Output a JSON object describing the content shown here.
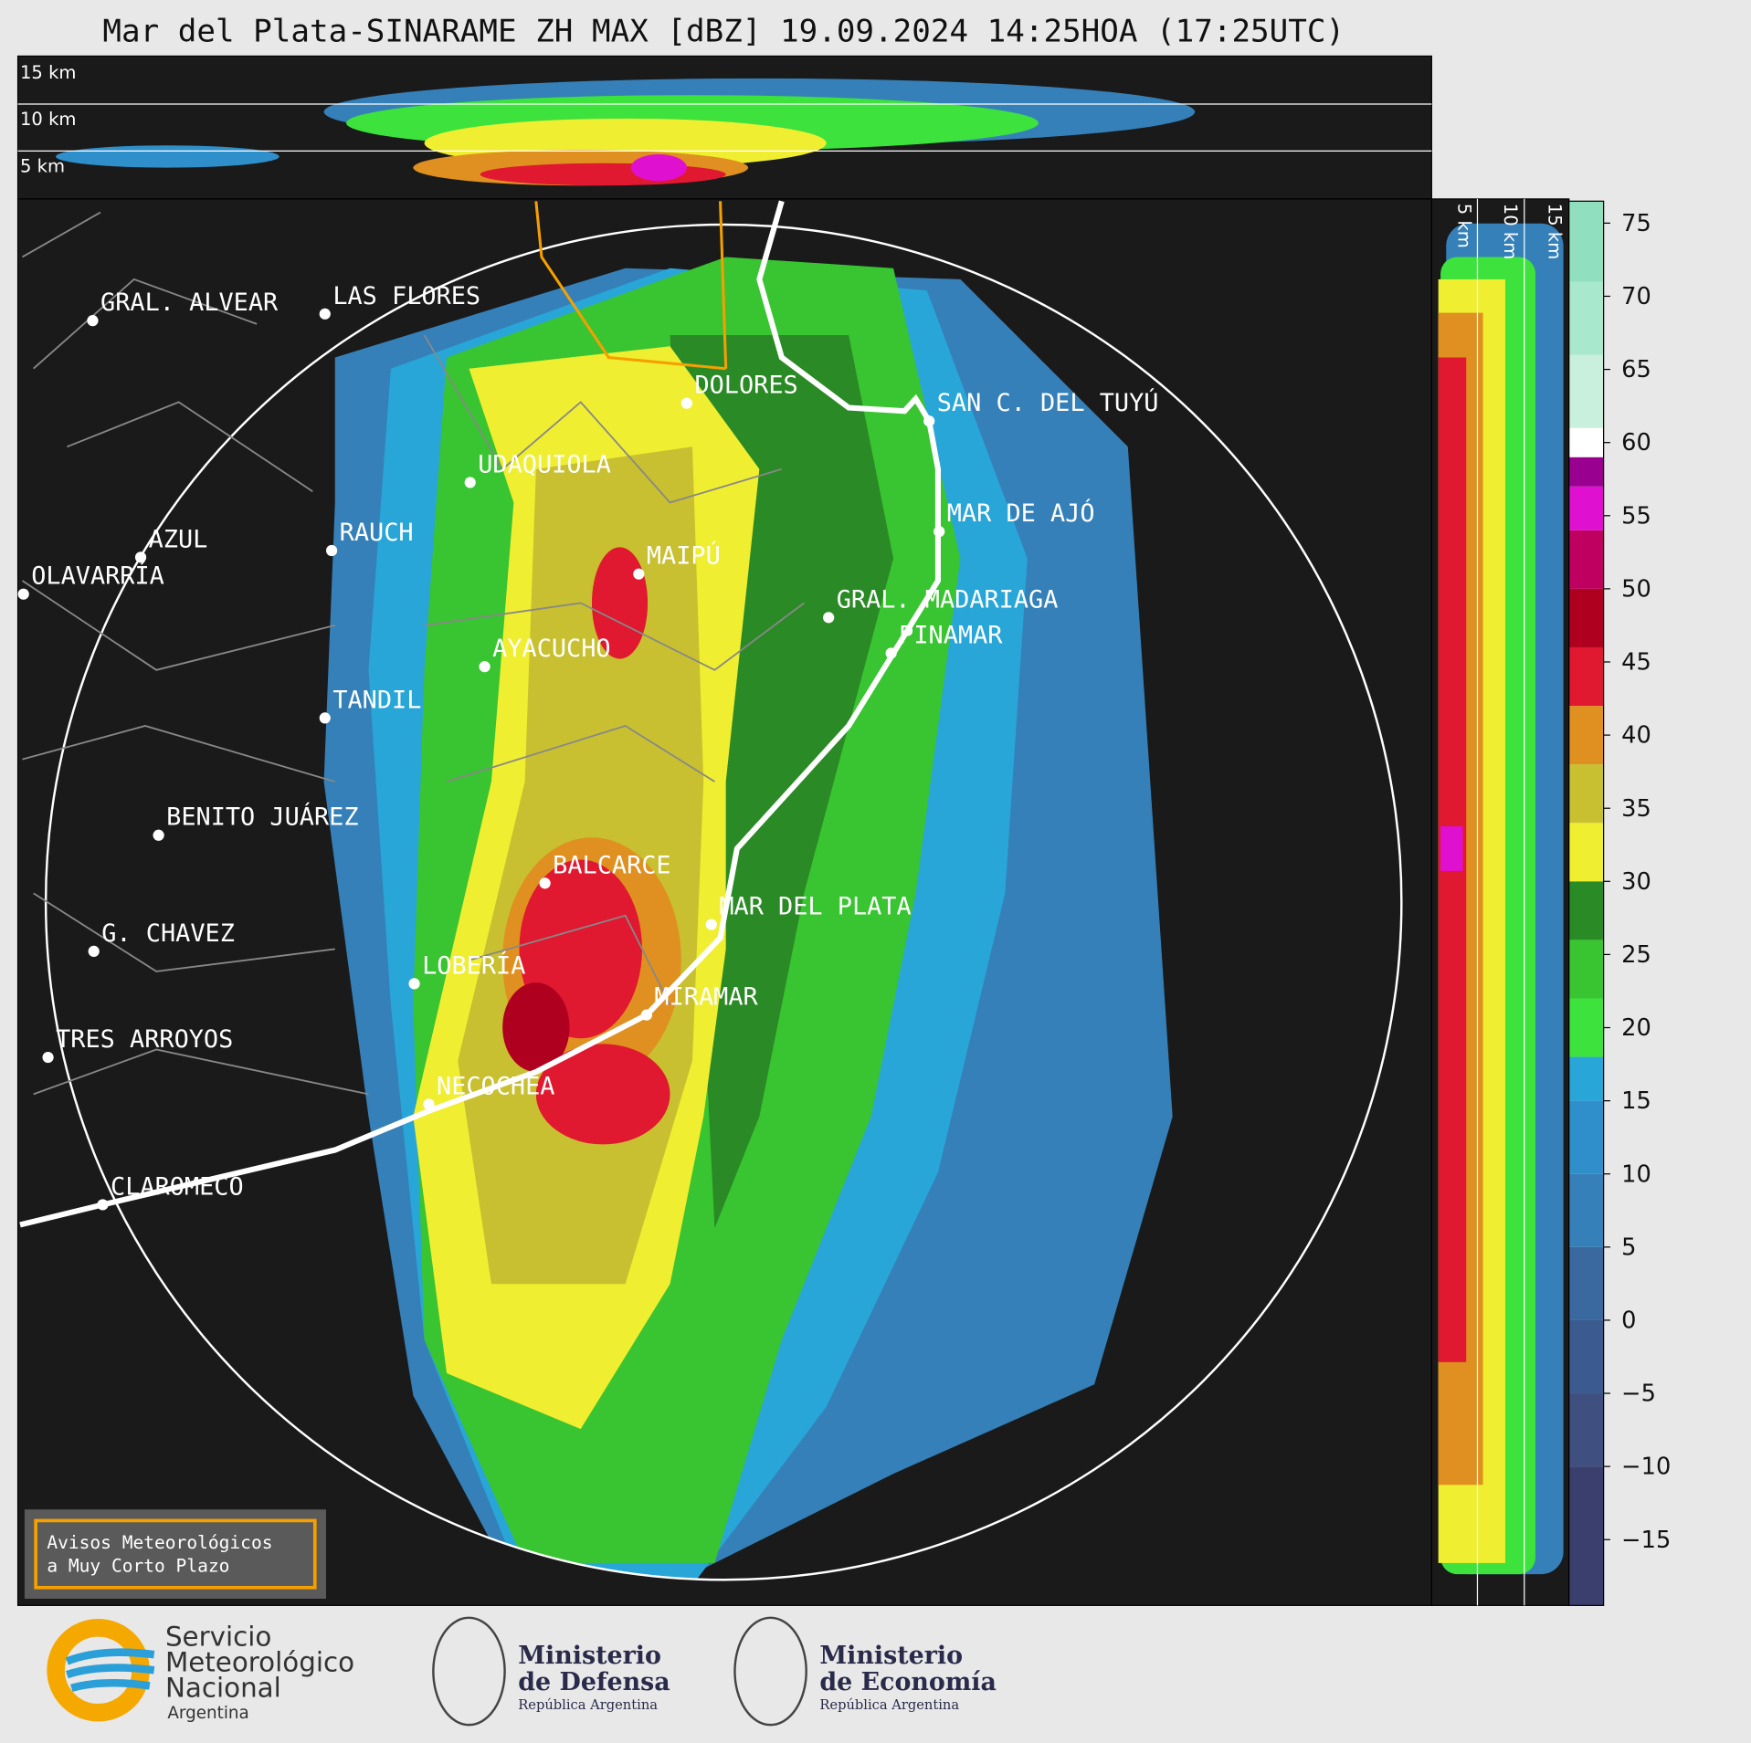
{
  "title": "Mar del Plata-SINARAME ZH MAX [dBZ] 19.09.2024 14:25HOA (17:25UTC)",
  "cross_section_top": {
    "height_labels": [
      "15 km",
      "10 km",
      "5 km"
    ]
  },
  "cross_section_side": {
    "height_labels": [
      "5 km",
      "10 km",
      "15 km"
    ]
  },
  "cities": [
    "GRAL. ALVEAR",
    "LAS FLORES",
    "DOLORES",
    "SAN C. DEL TUYÚ",
    "UDAQUIOLA",
    "MAR DE AJÓ",
    "AZUL",
    "RAUCH",
    "MAIPÚ",
    "OLAVARRÍA",
    "GRAL. MADARIAGA",
    "PINAMAR",
    "AYACUCHO",
    "TANDIL",
    "BENITO JUÁREZ",
    "BALCARCE",
    "MAR DEL PLATA",
    "G. CHAVEZ",
    "LOBERÍA",
    "MIRAMAR",
    "TRES ARROYOS",
    "NECOCHEA",
    "CLAROMECO"
  ],
  "colorbar": {
    "range": [
      -19.5,
      76.5
    ],
    "ticks": [
      75,
      70,
      65,
      60,
      55,
      50,
      45,
      40,
      35,
      30,
      25,
      20,
      15,
      10,
      5,
      0,
      {
        "value": -5,
        "label": "−5"
      },
      {
        "value": -10,
        "label": "−10"
      },
      {
        "value": -15,
        "label": "−15"
      }
    ],
    "bands": [
      {
        "from": -19.5,
        "to": -10,
        "color": "#3a3f6e"
      },
      {
        "from": -10,
        "to": -5,
        "color": "#3f4f80"
      },
      {
        "from": -5,
        "to": 0,
        "color": "#3b5b8f"
      },
      {
        "from": 0,
        "to": 5,
        "color": "#39699f"
      },
      {
        "from": 5,
        "to": 10,
        "color": "#3580b8"
      },
      {
        "from": 10,
        "to": 15,
        "color": "#2f8fca"
      },
      {
        "from": 15,
        "to": 18,
        "color": "#29a6d8"
      },
      {
        "from": 18,
        "to": 22,
        "color": "#3de23d"
      },
      {
        "from": 22,
        "to": 26,
        "color": "#39c431"
      },
      {
        "from": 26,
        "to": 30,
        "color": "#2a8a25"
      },
      {
        "from": 30,
        "to": 34,
        "color": "#f0ee30"
      },
      {
        "from": 34,
        "to": 38,
        "color": "#c8c030"
      },
      {
        "from": 38,
        "to": 42,
        "color": "#e09020"
      },
      {
        "from": 42,
        "to": 46,
        "color": "#e01830"
      },
      {
        "from": 46,
        "to": 50,
        "color": "#b00020"
      },
      {
        "from": 50,
        "to": 54,
        "color": "#c00060"
      },
      {
        "from": 54,
        "to": 57,
        "color": "#e010d0"
      },
      {
        "from": 57,
        "to": 59,
        "color": "#9a0090"
      },
      {
        "from": 59,
        "to": 61,
        "color": "#ffffff"
      },
      {
        "from": 61,
        "to": 66,
        "color": "#c8f0dc"
      },
      {
        "from": 66,
        "to": 71,
        "color": "#a8e8cc"
      },
      {
        "from": 71,
        "to": 76.5,
        "color": "#90e0c0"
      }
    ]
  },
  "notice": [
    "Avisos Meteorológicos",
    "a Muy Corto Plazo"
  ],
  "logos": [
    [
      "Servicio",
      "Meteorológico",
      "Nacional",
      "Argentina"
    ],
    [
      "Ministerio",
      "de Defensa",
      "República Argentina"
    ],
    [
      "Ministerio",
      "de Economía",
      "República Argentina"
    ]
  ]
}
